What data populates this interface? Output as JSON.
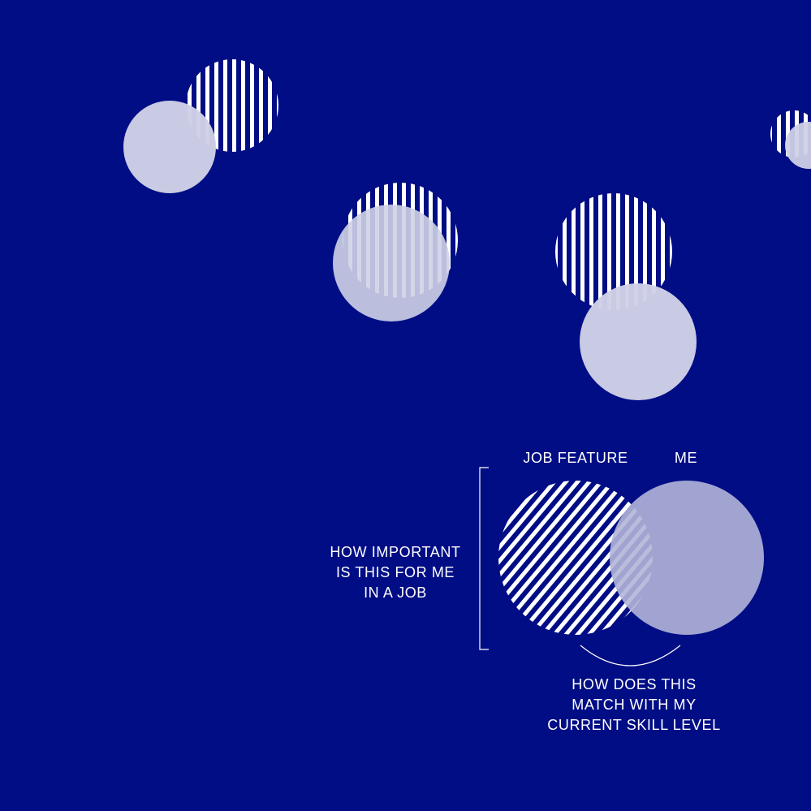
{
  "colors": {
    "background": "#000d85",
    "light_circle": "#cfd1e6",
    "legend_circle": "#b3b5d8",
    "stripes": "#ffffff",
    "text": "#ffffff"
  },
  "legend": {
    "job_feature_label": "JOB FEATURE",
    "me_label": "ME",
    "importance_lines": [
      "HOW IMPORTANT",
      "IS THIS FOR ME",
      "IN A JOB"
    ],
    "match_lines": [
      "HOW DOES THIS",
      "MATCH WITH MY",
      "CURRENT SKILL LEVEL"
    ]
  },
  "icons": {
    "job_feature": "striped-circle-icon",
    "me": "light-circle-icon"
  }
}
